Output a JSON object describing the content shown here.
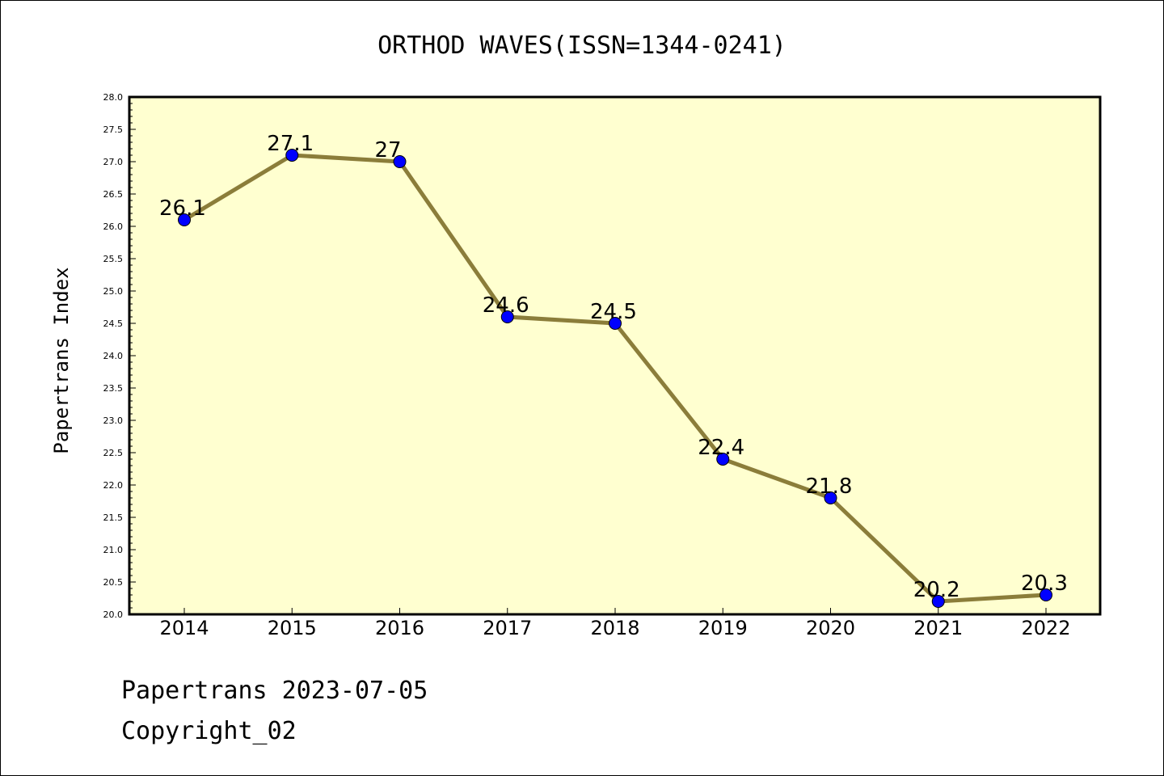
{
  "chart_data": {
    "type": "line",
    "title": "ORTHOD WAVES(ISSN=1344-0241)",
    "ylabel": "Papertrans Index",
    "xlabel": "",
    "x": [
      "2014",
      "2015",
      "2016",
      "2017",
      "2018",
      "2019",
      "2020",
      "2021",
      "2022"
    ],
    "values": [
      26.1,
      27.1,
      27.0,
      24.6,
      24.5,
      22.4,
      21.8,
      20.2,
      20.3
    ],
    "data_labels": [
      "26.1",
      "27.1",
      "27",
      "24.6",
      "24.5",
      "22.4",
      "21.8",
      "20.2",
      "20.3"
    ],
    "ylim": [
      20.0,
      28.0
    ],
    "yticks": [
      "20.0",
      "20.5",
      "21.0",
      "21.5",
      "22.0",
      "22.5",
      "23.0",
      "23.5",
      "24.0",
      "24.5",
      "25.0",
      "25.5",
      "26.0",
      "26.5",
      "27.0",
      "27.5",
      "28.0"
    ],
    "grid": false,
    "colors": {
      "plot_background": "#ffffd0",
      "line": "#8b7d3a",
      "marker": "#0000ff"
    }
  },
  "footer": {
    "line1": "Papertrans 2023-07-05",
    "line2": "Copyright_02"
  }
}
